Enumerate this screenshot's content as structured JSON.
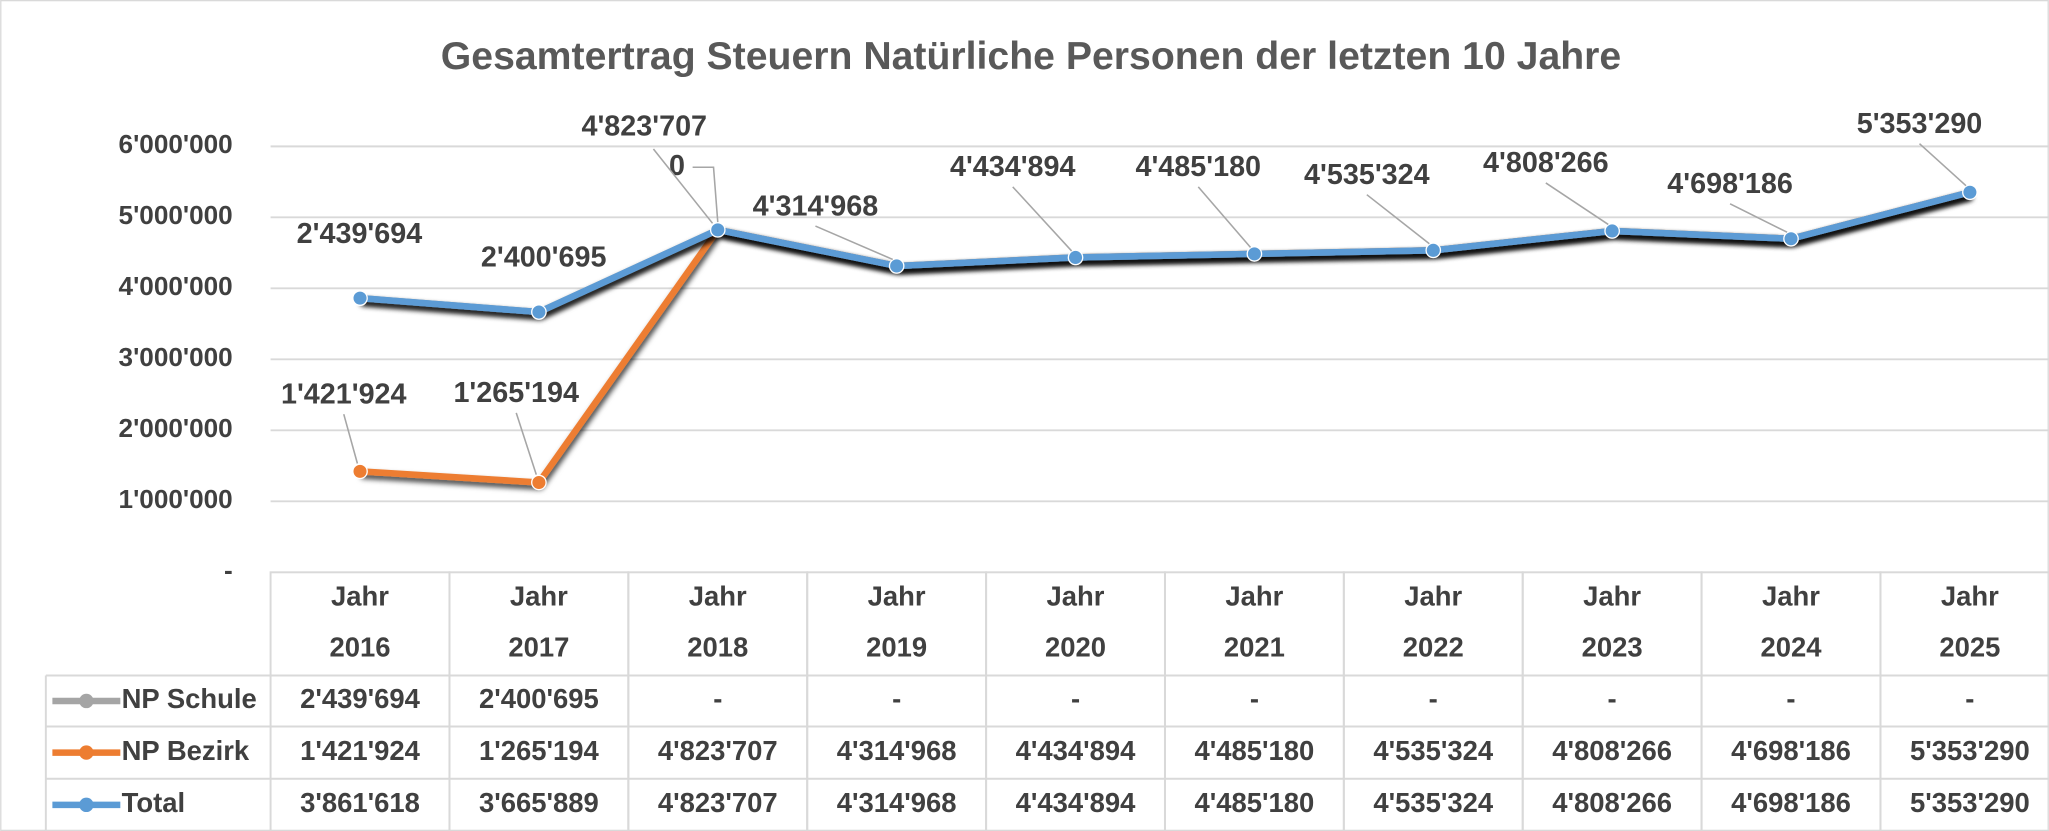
{
  "chart_data": {
    "type": "line",
    "title": "Gesamtertrag Steuern Natürliche Personen der letzten 10 Jahre",
    "categories": [
      "Jahr 2016",
      "Jahr 2017",
      "Jahr 2018",
      "Jahr 2019",
      "Jahr 2020",
      "Jahr 2021",
      "Jahr 2022",
      "Jahr 2023",
      "Jahr 2024",
      "Jahr 2025"
    ],
    "ylim": [
      0,
      6000000
    ],
    "yticks": [
      {
        "value": 0,
        "label": "-"
      },
      {
        "value": 1000000,
        "label": "1'000'000"
      },
      {
        "value": 2000000,
        "label": "2'000'000"
      },
      {
        "value": 3000000,
        "label": "3'000'000"
      },
      {
        "value": 4000000,
        "label": "4'000'000"
      },
      {
        "value": 5000000,
        "label": "5'000'000"
      },
      {
        "value": 6000000,
        "label": "6'000'000"
      }
    ],
    "grid": true,
    "series": [
      {
        "name": "NP Schule",
        "color": "#a5a5a5",
        "stacked": true,
        "values": [
          2439694,
          2400695,
          0,
          0,
          0,
          0,
          0,
          0,
          0,
          0
        ],
        "value_labels": [
          "2'439'694",
          "2'400'695",
          "-",
          "-",
          "-",
          "-",
          "-",
          "-",
          "-",
          "-"
        ],
        "data_labels": [
          "2'439'694",
          "2'400'695",
          "0"
        ]
      },
      {
        "name": "NP Bezirk",
        "color": "#ed7d31",
        "stacked": true,
        "values": [
          1421924,
          1265194,
          4823707,
          4314968,
          4434894,
          4485180,
          4535324,
          4808266,
          4698186,
          5353290
        ],
        "value_labels": [
          "1'421'924",
          "1'265'194",
          "4'823'707",
          "4'314'968",
          "4'434'894",
          "4'485'180",
          "4'535'324",
          "4'808'266",
          "4'698'186",
          "5'353'290"
        ]
      },
      {
        "name": "Total",
        "color": "#5b9bd5",
        "values": [
          3861618,
          3665889,
          4823707,
          4314968,
          4434894,
          4485180,
          4535324,
          4808266,
          4698186,
          5353290
        ],
        "value_labels": [
          "3'861'618",
          "3'665'889",
          "4'823'707",
          "4'314'968",
          "4'434'894",
          "4'485'180",
          "4'535'324",
          "4'808'266",
          "4'698'186",
          "5'353'290"
        ]
      }
    ]
  }
}
